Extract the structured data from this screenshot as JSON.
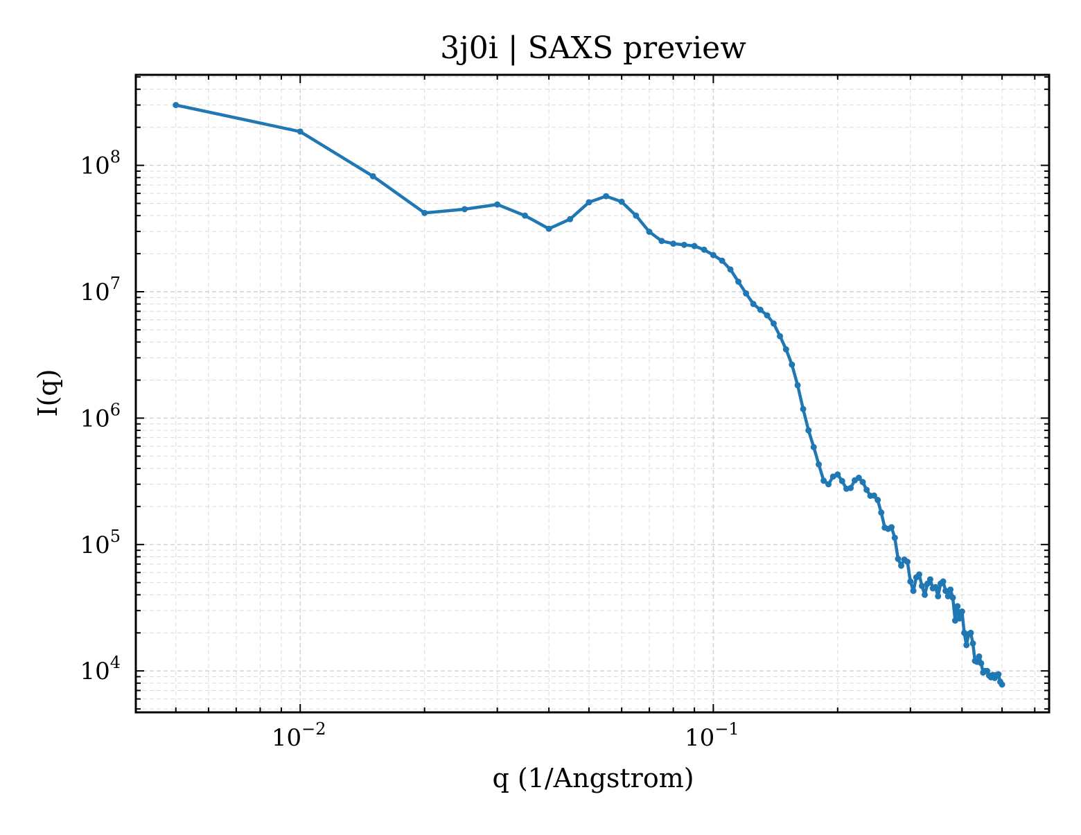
{
  "chart_data": {
    "type": "line",
    "title": "3j0i | SAXS preview",
    "xlabel": "q (1/Angstrom)",
    "ylabel": "I(q)",
    "xscale": "log",
    "yscale": "log",
    "xlim": [
      0.004,
      0.65
    ],
    "ylim": [
      4700,
      520000000
    ],
    "grid": true,
    "x_ticks": [
      {
        "value": 0.01,
        "base": "10",
        "exp": "−2"
      },
      {
        "value": 0.1,
        "base": "10",
        "exp": "−1"
      }
    ],
    "y_ticks": [
      {
        "value": 10000,
        "base": "10",
        "exp": "4"
      },
      {
        "value": 100000,
        "base": "10",
        "exp": "5"
      },
      {
        "value": 1000000,
        "base": "10",
        "exp": "6"
      },
      {
        "value": 10000000,
        "base": "10",
        "exp": "7"
      },
      {
        "value": 100000000,
        "base": "10",
        "exp": "8"
      }
    ],
    "series": [
      {
        "color": "#1f77b4",
        "points": [
          [
            0.005,
            300000000
          ],
          [
            0.01,
            185000000
          ],
          [
            0.015,
            82000000
          ],
          [
            0.02,
            42000000
          ],
          [
            0.025,
            45000000
          ],
          [
            0.03,
            49000000
          ],
          [
            0.035,
            40000000
          ],
          [
            0.04,
            31500000
          ],
          [
            0.045,
            37500000
          ],
          [
            0.05,
            51000000
          ],
          [
            0.055,
            57000000
          ],
          [
            0.06,
            51500000
          ],
          [
            0.065,
            40000000
          ],
          [
            0.07,
            29800000
          ],
          [
            0.075,
            25200000
          ],
          [
            0.08,
            24000000
          ],
          [
            0.085,
            23500000
          ],
          [
            0.09,
            23000000
          ],
          [
            0.095,
            21500000
          ],
          [
            0.1,
            19500000
          ],
          [
            0.105,
            17600000
          ],
          [
            0.11,
            15000000
          ],
          [
            0.115,
            12000000
          ],
          [
            0.12,
            9700000
          ],
          [
            0.125,
            8000000
          ],
          [
            0.13,
            7200000
          ],
          [
            0.135,
            6500000
          ],
          [
            0.14,
            5600000
          ],
          [
            0.145,
            4450000
          ],
          [
            0.15,
            3500000
          ],
          [
            0.155,
            2650000
          ],
          [
            0.16,
            1820000
          ],
          [
            0.165,
            1180000
          ],
          [
            0.17,
            800000
          ],
          [
            0.175,
            590000
          ],
          [
            0.18,
            430000
          ],
          [
            0.185,
            320000
          ],
          [
            0.19,
            300000
          ],
          [
            0.195,
            345000
          ],
          [
            0.2,
            358000
          ],
          [
            0.205,
            318000
          ],
          [
            0.21,
            276000
          ],
          [
            0.215,
            280000
          ],
          [
            0.22,
            322000
          ],
          [
            0.225,
            337000
          ],
          [
            0.23,
            312000
          ],
          [
            0.235,
            271000
          ],
          [
            0.24,
            243000
          ],
          [
            0.245,
            244000
          ],
          [
            0.25,
            225000
          ],
          [
            0.255,
            179000
          ],
          [
            0.26,
            136000
          ],
          [
            0.265,
            133000
          ],
          [
            0.27,
            137000
          ],
          [
            0.275,
            113000
          ],
          [
            0.28,
            77000
          ],
          [
            0.285,
            68000
          ],
          [
            0.29,
            76000
          ],
          [
            0.295,
            73000
          ],
          [
            0.3,
            51000
          ],
          [
            0.305,
            43000
          ],
          [
            0.31,
            55000
          ],
          [
            0.315,
            58000
          ],
          [
            0.32,
            47000
          ],
          [
            0.325,
            40000
          ],
          [
            0.33,
            49000
          ],
          [
            0.335,
            53000
          ],
          [
            0.34,
            45000
          ],
          [
            0.345,
            46000
          ],
          [
            0.35,
            39000
          ],
          [
            0.355,
            49000
          ],
          [
            0.36,
            51000
          ],
          [
            0.365,
            43000
          ],
          [
            0.37,
            39000
          ],
          [
            0.375,
            44000
          ],
          [
            0.38,
            38000
          ],
          [
            0.385,
            25000
          ],
          [
            0.39,
            32500
          ],
          [
            0.395,
            26000
          ],
          [
            0.4,
            29500
          ],
          [
            0.405,
            20000
          ],
          [
            0.41,
            16000
          ],
          [
            0.415,
            19500
          ],
          [
            0.42,
            20000
          ],
          [
            0.425,
            16500
          ],
          [
            0.43,
            12000
          ],
          [
            0.435,
            11800
          ],
          [
            0.44,
            13000
          ],
          [
            0.445,
            11500
          ],
          [
            0.45,
            9700
          ],
          [
            0.455,
            10000
          ],
          [
            0.46,
            10000
          ],
          [
            0.465,
            9200
          ],
          [
            0.47,
            8900
          ],
          [
            0.475,
            9300
          ],
          [
            0.48,
            8800
          ],
          [
            0.485,
            9300
          ],
          [
            0.49,
            9400
          ],
          [
            0.495,
            8200
          ],
          [
            0.5,
            7800
          ]
        ]
      }
    ]
  }
}
